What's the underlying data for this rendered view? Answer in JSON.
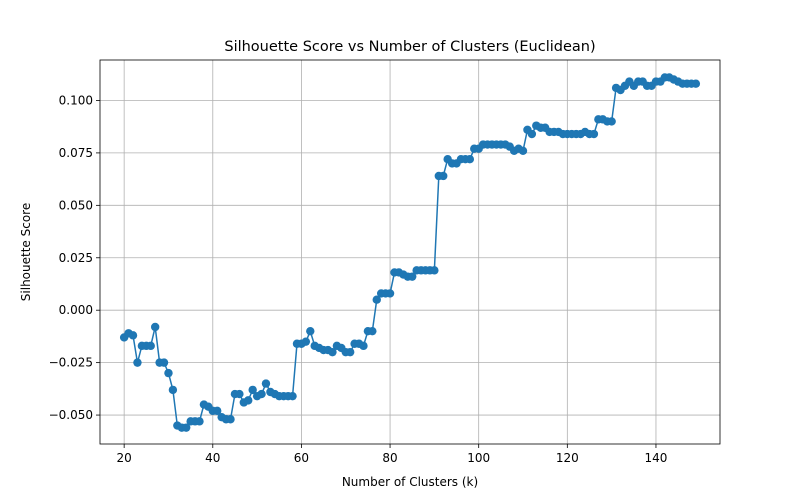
{
  "chart_data": {
    "type": "line",
    "title": "Silhouette Score vs Number of Clusters (Euclidean)",
    "xlabel": "Number of Clusters (k)",
    "ylabel": "Silhouette Score",
    "xlim": [
      14.55,
      154.45
    ],
    "ylim": [
      -0.0638,
      0.1193
    ],
    "xticks": [
      20,
      40,
      60,
      80,
      100,
      120,
      140
    ],
    "yticks": [
      -0.05,
      -0.025,
      0.0,
      0.025,
      0.05,
      0.075,
      0.1
    ],
    "ytick_labels": [
      "−0.050",
      "−0.025",
      "0.000",
      "0.025",
      "0.050",
      "0.075",
      "0.100"
    ],
    "grid": true,
    "color": "#1f77b4",
    "series": [
      {
        "x": [
          20,
          21,
          22,
          23,
          24,
          25,
          26,
          27,
          28,
          29,
          30,
          31,
          32,
          33,
          34,
          35,
          36,
          37,
          38,
          39,
          40,
          41,
          42,
          43,
          44,
          45,
          46,
          47,
          48,
          49,
          50,
          51,
          52,
          53,
          54,
          55,
          56,
          57,
          58,
          59,
          60,
          61,
          62,
          63,
          64,
          65,
          66,
          67,
          68,
          69,
          70,
          71,
          72,
          73,
          74,
          75,
          76,
          77,
          78,
          79,
          80,
          81,
          82,
          83,
          84,
          85,
          86,
          87,
          88,
          89,
          90,
          91,
          92,
          93,
          94,
          95,
          96,
          97,
          98,
          99,
          100,
          101,
          102,
          103,
          104,
          105,
          106,
          107,
          108,
          109,
          110,
          111,
          112,
          113,
          114,
          115,
          116,
          117,
          118,
          119,
          120,
          121,
          122,
          123,
          124,
          125,
          126,
          127,
          128,
          129,
          130,
          131,
          132,
          133,
          134,
          135,
          136,
          137,
          138,
          139,
          140,
          141,
          142,
          143,
          144,
          145,
          146,
          147,
          148,
          149
        ],
        "y": [
          -0.013,
          -0.011,
          -0.012,
          -0.025,
          -0.017,
          -0.017,
          -0.017,
          -0.008,
          -0.025,
          -0.025,
          -0.03,
          -0.038,
          -0.055,
          -0.056,
          -0.056,
          -0.053,
          -0.053,
          -0.053,
          -0.045,
          -0.046,
          -0.048,
          -0.048,
          -0.051,
          -0.052,
          -0.052,
          -0.04,
          -0.04,
          -0.044,
          -0.043,
          -0.038,
          -0.041,
          -0.04,
          -0.035,
          -0.039,
          -0.04,
          -0.041,
          -0.041,
          -0.041,
          -0.041,
          -0.016,
          -0.016,
          -0.015,
          -0.01,
          -0.017,
          -0.018,
          -0.019,
          -0.019,
          -0.02,
          -0.017,
          -0.018,
          -0.02,
          -0.02,
          -0.016,
          -0.016,
          -0.017,
          -0.01,
          -0.01,
          0.005,
          0.008,
          0.008,
          0.008,
          0.018,
          0.018,
          0.017,
          0.016,
          0.016,
          0.019,
          0.019,
          0.019,
          0.019,
          0.019,
          0.064,
          0.064,
          0.072,
          0.07,
          0.07,
          0.072,
          0.072,
          0.072,
          0.077,
          0.077,
          0.079,
          0.079,
          0.079,
          0.079,
          0.079,
          0.079,
          0.078,
          0.076,
          0.077,
          0.076,
          0.086,
          0.084,
          0.088,
          0.087,
          0.087,
          0.085,
          0.085,
          0.085,
          0.084,
          0.084,
          0.084,
          0.084,
          0.084,
          0.085,
          0.084,
          0.084,
          0.091,
          0.091,
          0.09,
          0.09,
          0.106,
          0.105,
          0.107,
          0.109,
          0.107,
          0.109,
          0.109,
          0.107,
          0.107,
          0.109,
          0.109,
          0.111,
          0.111,
          0.11,
          0.109,
          0.108,
          0.108,
          0.108,
          0.108
        ]
      }
    ]
  }
}
